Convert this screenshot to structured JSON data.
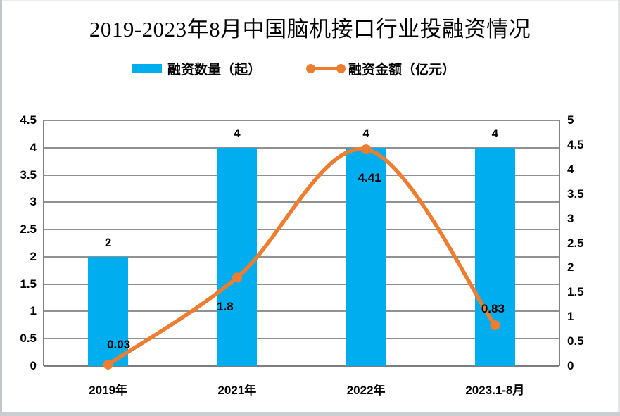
{
  "header": {
    "title": "2019-2023年8月中国脑机接口行业投融资情况"
  },
  "colors": {
    "bar": "#00AEEF",
    "line": "#ED7D31",
    "grid": "#8f9193",
    "text": "#000000"
  },
  "chart_data": {
    "type": "combo-bar-line",
    "title": "2019-2023年8月中国脑机接口行业投融资情况",
    "categories": [
      "2019年",
      "2021年",
      "2022年",
      "2023.1-8月"
    ],
    "series": [
      {
        "name": "融资数量（起）",
        "type": "bar",
        "axis": "left",
        "color": "#00AEEF",
        "values": [
          2,
          4,
          4,
          4
        ],
        "labels": [
          "2",
          "4",
          "4",
          "4"
        ]
      },
      {
        "name": "融资金额（亿元）",
        "type": "line",
        "axis": "right",
        "color": "#ED7D31",
        "values": [
          0.03,
          1.8,
          4.41,
          0.83
        ],
        "labels": [
          "0.03",
          "1.8",
          "4.41",
          "0.83"
        ]
      }
    ],
    "left_axis": {
      "min": 0,
      "max": 4.5,
      "tick_labels": [
        "4.5",
        "4",
        "3.5",
        "3",
        "2.5",
        "2",
        "1.5",
        "1",
        "0.5",
        "0"
      ]
    },
    "right_axis": {
      "min": 0,
      "max": 5,
      "tick_labels": [
        "5",
        "4.5",
        "4",
        "3.5",
        "3",
        "2.5",
        "2",
        "1.5",
        "1",
        "0.5",
        "0"
      ]
    },
    "grid": true,
    "legend_position": "top"
  }
}
